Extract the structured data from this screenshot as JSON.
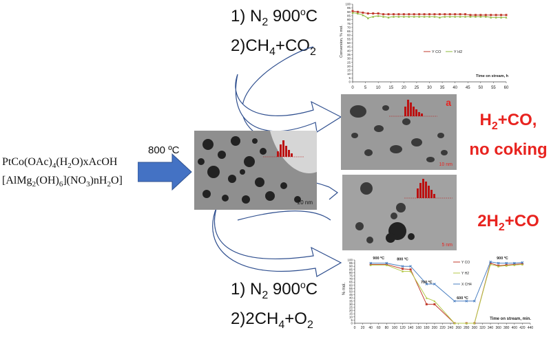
{
  "precursor": {
    "line1": {
      "a": "PtCo(OAc)",
      "s1": "4",
      "b": "(H",
      "s2": "2",
      "c": "O)xAcOH"
    },
    "line2": {
      "a": "[AlMg",
      "s1": "2",
      "b": "(OH)",
      "s2": "6",
      "c": "](NO",
      "s3": "3",
      "d": ")nH",
      "s4": "2",
      "e": "O]"
    }
  },
  "arrow_label": "800 ºC",
  "top_conditions": {
    "l1_a": "1) N",
    "l1_s": "2",
    "l1_b": " 900",
    "l1_sup": "o",
    "l1_c": "C",
    "l2_a": "2)CH",
    "l2_s1": "4",
    "l2_b": "+CO",
    "l2_s2": "2"
  },
  "bottom_conditions": {
    "l1_a": "1) N",
    "l1_s": "2",
    "l1_b": " 900",
    "l1_sup": "o",
    "l1_c": "C",
    "l2_a": "2)2CH",
    "l2_s1": "4",
    "l2_b": "+O",
    "l2_s2": "2"
  },
  "result_top": {
    "a": "H",
    "s": "2",
    "b": "+CO,",
    "line2": "no coking"
  },
  "result_bottom": {
    "a": "2H",
    "s": "2",
    "b": "+CO"
  },
  "tem": {
    "center_scale": "20 nm",
    "top_label": "a",
    "top_scale": "10 nm",
    "bottom_scale": "5 nm"
  },
  "chart_data": [
    {
      "type": "line",
      "xlabel": "Time on stream, h",
      "ylabel": "Conversion, % mol.",
      "xlim": [
        0,
        60
      ],
      "ylim": [
        0,
        100
      ],
      "xticks": [
        0,
        5,
        10,
        15,
        20,
        25,
        30,
        35,
        40,
        45,
        50,
        55,
        60
      ],
      "yticks": [
        0,
        5,
        10,
        15,
        20,
        25,
        30,
        35,
        40,
        45,
        50,
        55,
        60,
        65,
        70,
        75,
        80,
        85,
        90,
        95,
        100
      ],
      "legend_position": "middle-right",
      "series": [
        {
          "name": "Y CO",
          "color": "#c0392b",
          "x": [
            0,
            2,
            4,
            6,
            8,
            10,
            12,
            14,
            16,
            18,
            20,
            22,
            24,
            26,
            28,
            30,
            32,
            34,
            36,
            38,
            40,
            42,
            44,
            46,
            48,
            50,
            52,
            54,
            56,
            58,
            60
          ],
          "values": [
            91,
            90,
            89,
            88,
            88,
            88,
            87,
            87,
            87,
            87,
            87,
            87,
            87,
            87,
            87,
            87,
            87,
            87,
            87,
            87,
            87,
            87,
            87,
            86,
            86,
            86,
            86,
            86,
            86,
            86,
            86
          ]
        },
        {
          "name": "Y H2",
          "color": "#8cb83a",
          "x": [
            0,
            2,
            4,
            6,
            8,
            10,
            12,
            14,
            16,
            18,
            20,
            22,
            24,
            26,
            28,
            30,
            32,
            34,
            36,
            38,
            40,
            42,
            44,
            46,
            48,
            50,
            52,
            54,
            56,
            58,
            60
          ],
          "values": [
            89,
            88,
            86,
            82,
            84,
            85,
            84,
            83,
            84,
            84,
            84,
            84,
            84,
            84,
            84,
            84,
            84,
            83,
            84,
            84,
            84,
            84,
            84,
            84,
            84,
            84,
            84,
            83,
            83,
            83,
            83
          ]
        }
      ]
    },
    {
      "type": "line",
      "xlabel": "Time on stream, min.",
      "ylabel": "% mol.",
      "xlim": [
        0,
        440
      ],
      "ylim": [
        0,
        100
      ],
      "xticks": [
        0,
        20,
        40,
        60,
        80,
        100,
        120,
        140,
        160,
        180,
        200,
        220,
        240,
        260,
        280,
        300,
        320,
        340,
        360,
        380,
        400,
        420,
        440
      ],
      "yticks": [
        0,
        5,
        10,
        15,
        20,
        25,
        30,
        35,
        40,
        45,
        50,
        55,
        60,
        65,
        70,
        75,
        80,
        85,
        90,
        95,
        100
      ],
      "legend_position": "top-right",
      "annotations": [
        {
          "text": "900 ºC",
          "x": 60,
          "y": 98
        },
        {
          "text": "800 ºC",
          "x": 120,
          "y": 96
        },
        {
          "text": "700 ºC",
          "x": 180,
          "y": 60
        },
        {
          "text": "600 ºC",
          "x": 270,
          "y": 35
        },
        {
          "text": "900 ºC",
          "x": 370,
          "y": 98
        }
      ],
      "series": [
        {
          "name": "Y CO",
          "color": "#c0392b",
          "x": [
            40,
            80,
            120,
            140,
            180,
            200,
            250,
            280,
            300,
            340,
            360,
            380,
            400,
            420
          ],
          "values": [
            93,
            93,
            86,
            85,
            30,
            30,
            0,
            0,
            0,
            95,
            91,
            92,
            93,
            94
          ]
        },
        {
          "name": "Y H2",
          "color": "#b5c94a",
          "x": [
            40,
            80,
            120,
            140,
            180,
            200,
            250,
            280,
            300,
            340,
            360,
            380,
            400,
            420
          ],
          "values": [
            92,
            92,
            82,
            82,
            40,
            35,
            0,
            0,
            0,
            93,
            90,
            91,
            92,
            93
          ]
        },
        {
          "name": "X CH4",
          "color": "#4a7fc1",
          "x": [
            40,
            80,
            120,
            140,
            180,
            200,
            250,
            280,
            300,
            340,
            360,
            380,
            400,
            420
          ],
          "values": [
            95,
            95,
            90,
            90,
            62,
            62,
            35,
            35,
            35,
            97,
            95,
            95,
            95,
            96
          ]
        }
      ]
    }
  ]
}
